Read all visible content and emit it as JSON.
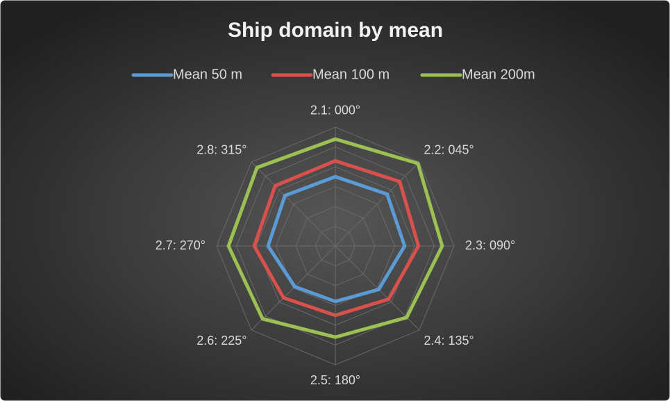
{
  "chart_data": {
    "type": "radar",
    "title": "Ship domain by mean",
    "categories": [
      "2.1: 000°",
      "2.2: 045°",
      "2.3: 090°",
      "2.4: 135°",
      "2.5: 180°",
      "2.6: 225°",
      "2.7: 270°",
      "2.8: 315°"
    ],
    "series": [
      {
        "name": "Mean 50 m",
        "color": "#5b9bd5",
        "values": [
          3.5,
          3.7,
          3.5,
          3.1,
          2.8,
          2.9,
          3.4,
          3.6
        ]
      },
      {
        "name": "Mean 100 m",
        "color": "#d9504c",
        "values": [
          4.3,
          4.6,
          4.2,
          3.8,
          3.5,
          3.7,
          4.1,
          4.3
        ]
      },
      {
        "name": "Mean 200m",
        "color": "#9bc152",
        "values": [
          5.4,
          5.9,
          5.4,
          5.1,
          4.6,
          5.2,
          5.4,
          5.6
        ]
      }
    ],
    "ylim": [
      0,
      6
    ],
    "yticks": [
      0,
      1,
      2,
      3,
      4,
      5,
      6
    ],
    "grid": true,
    "legend": "top"
  }
}
